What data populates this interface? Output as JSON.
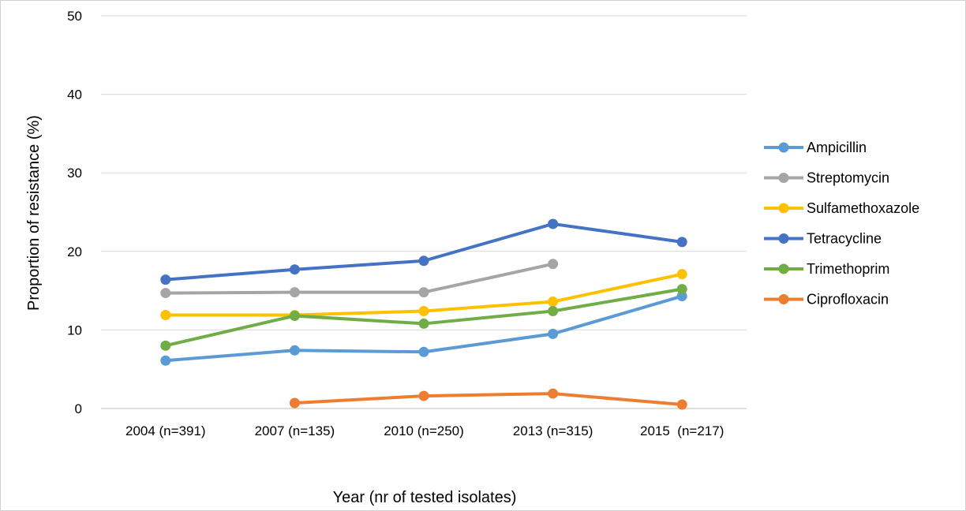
{
  "chart_data": {
    "type": "line",
    "title": "",
    "xlabel": "Year (nr of tested isolates)",
    "ylabel": "Proportion of resistance (%)",
    "categories": [
      "2004 (n=391)",
      "2007 (n=135)",
      "2010 (n=250)",
      "2013 (n=315)",
      "2015  (n=217)"
    ],
    "ylim": [
      0,
      50
    ],
    "yticks": [
      "0",
      "10",
      "20",
      "30",
      "40",
      "50"
    ],
    "grid": true,
    "legend_position": "right",
    "series": [
      {
        "name": "Ampicillin",
        "color": "#5b9bd5",
        "values": [
          6.1,
          7.4,
          7.2,
          9.5,
          14.3
        ]
      },
      {
        "name": "Streptomycin",
        "color": "#a5a5a5",
        "values": [
          14.7,
          14.8,
          14.8,
          18.4,
          null
        ]
      },
      {
        "name": "Sulfamethoxazole",
        "color": "#ffc000",
        "values": [
          11.9,
          11.9,
          12.4,
          13.6,
          17.1
        ]
      },
      {
        "name": "Tetracycline",
        "color": "#4472c4",
        "values": [
          16.4,
          17.7,
          18.8,
          23.5,
          21.2
        ]
      },
      {
        "name": "Trimethoprim",
        "color": "#70ad47",
        "values": [
          8.0,
          11.8,
          10.8,
          12.4,
          15.2
        ]
      },
      {
        "name": "Ciprofloxacin",
        "color": "#ed7d31",
        "values": [
          null,
          0.7,
          1.6,
          1.9,
          0.5
        ]
      }
    ]
  }
}
